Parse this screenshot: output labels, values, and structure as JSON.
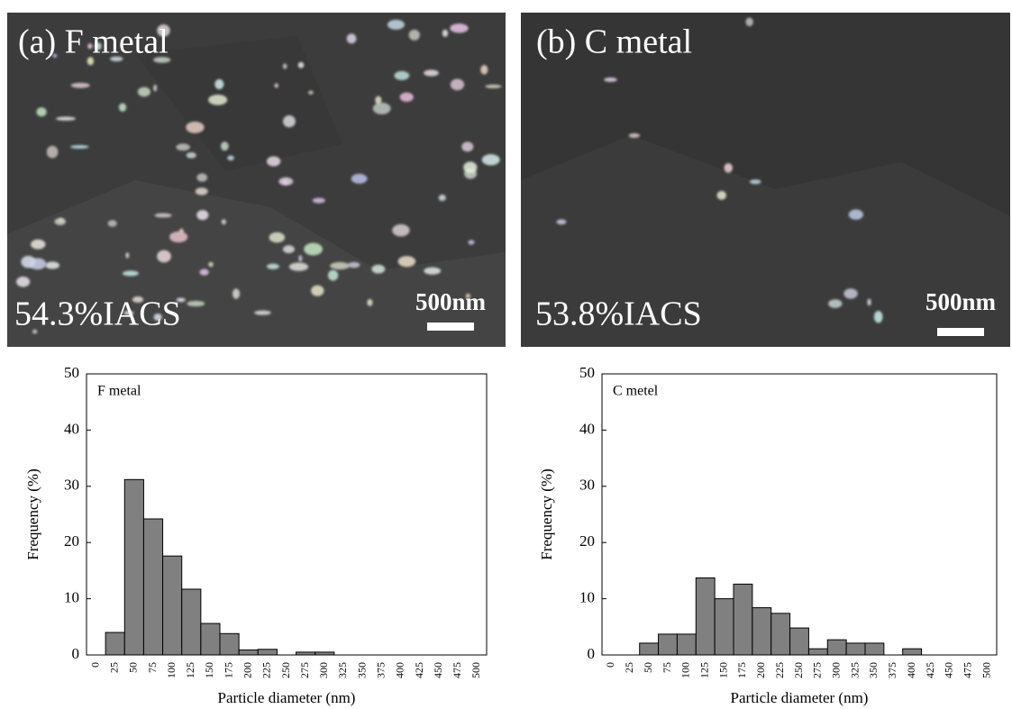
{
  "images": [
    {
      "label": "(a) F metal",
      "conductivity": "54.3%IACS",
      "scale": "500nm"
    },
    {
      "label": "(b) C metal",
      "conductivity": "53.8%IACS",
      "scale": "500nm"
    }
  ],
  "chart_data": [
    {
      "type": "bar",
      "annotation": "F metal",
      "xlabel": "Particle diameter (nm)",
      "ylabel": "Frequency (%)",
      "categories": [
        0,
        25,
        50,
        75,
        100,
        125,
        150,
        175,
        200,
        225,
        250,
        275,
        300,
        325,
        350,
        375,
        400,
        425,
        450,
        475,
        500
      ],
      "values": [
        0,
        4,
        31.2,
        24.2,
        17.6,
        11.7,
        5.6,
        3.8,
        0.9,
        1.0,
        0,
        0.5,
        0.5,
        0,
        0,
        0,
        0,
        0,
        0,
        0,
        0
      ],
      "color": "#808080",
      "ylim": [
        0,
        50
      ],
      "yticks": [
        0,
        10,
        20,
        30,
        40,
        50
      ]
    },
    {
      "type": "bar",
      "annotation": "C metel",
      "xlabel": "Particle diameter (nm)",
      "ylabel": "Frequency (%)",
      "categories": [
        0,
        25,
        50,
        75,
        100,
        125,
        150,
        175,
        200,
        225,
        250,
        275,
        300,
        325,
        350,
        375,
        400,
        425,
        450,
        475,
        500
      ],
      "values": [
        0,
        0,
        2.1,
        3.7,
        3.7,
        13.7,
        10,
        12.6,
        8.4,
        7.4,
        4.8,
        1.1,
        2.7,
        2.1,
        2.1,
        0,
        1.1,
        0,
        0,
        0,
        0
      ],
      "color": "#808080",
      "ylim": [
        0,
        50
      ],
      "yticks": [
        0,
        10,
        20,
        30,
        40,
        50
      ]
    }
  ]
}
